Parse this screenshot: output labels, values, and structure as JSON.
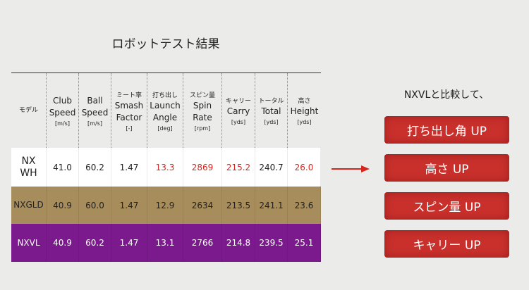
{
  "title": "ロボットテスト結果",
  "table": {
    "header": [
      {
        "jp": null,
        "en": [
          "モデル"
        ],
        "unit": null
      },
      {
        "jp": null,
        "en": [
          "Club",
          "Speed"
        ],
        "unit": "[m/s]"
      },
      {
        "jp": null,
        "en": [
          "Ball",
          "Speed"
        ],
        "unit": "[m/s]"
      },
      {
        "jp": "ミート率",
        "en": [
          "Smash",
          "Factor"
        ],
        "unit": "[-]"
      },
      {
        "jp": "打ち出し",
        "en": [
          "Launch",
          "Angle"
        ],
        "unit": "[deg]"
      },
      {
        "jp": "スピン量",
        "en": [
          "Spin",
          "Rate"
        ],
        "unit": "[rpm]"
      },
      {
        "jp": "キャリー",
        "en": [
          "Carry"
        ],
        "unit": "[yds]"
      },
      {
        "jp": "トータル",
        "en": [
          "Total"
        ],
        "unit": "[yds]"
      },
      {
        "jp": "高さ",
        "en": [
          "Height"
        ],
        "unit": "[yds]"
      }
    ],
    "rows": [
      {
        "model": [
          "NX",
          "WH"
        ],
        "values": [
          "41.0",
          "60.2",
          "1.47",
          "13.3",
          "2869",
          "215.2",
          "240.7",
          "26.0"
        ],
        "background": "#ffffff",
        "text_color": "#222222",
        "highlight": [
          3,
          4,
          5,
          7
        ],
        "highlight_color": "#d7261e"
      },
      {
        "model": [
          "NXGLD"
        ],
        "values": [
          "40.9",
          "60.0",
          "1.47",
          "12.9",
          "2634",
          "213.5",
          "241.1",
          "23.6"
        ],
        "background": "#a88d5c",
        "text_color": "#222222",
        "highlight": [],
        "highlight_color": "#d7261e"
      },
      {
        "model": [
          "NXVL"
        ],
        "values": [
          "40.9",
          "60.2",
          "1.47",
          "13.1",
          "2766",
          "214.8",
          "239.5",
          "25.1"
        ],
        "background": "#7a1a8c",
        "text_color": "#ffffff",
        "highlight": [],
        "highlight_color": "#d7261e"
      }
    ]
  },
  "comparison": {
    "heading": "NXVLと比較して、",
    "items": [
      "打ち出し角 UP",
      "高さ UP",
      "スピン量 UP",
      "キャリー UP"
    ]
  }
}
